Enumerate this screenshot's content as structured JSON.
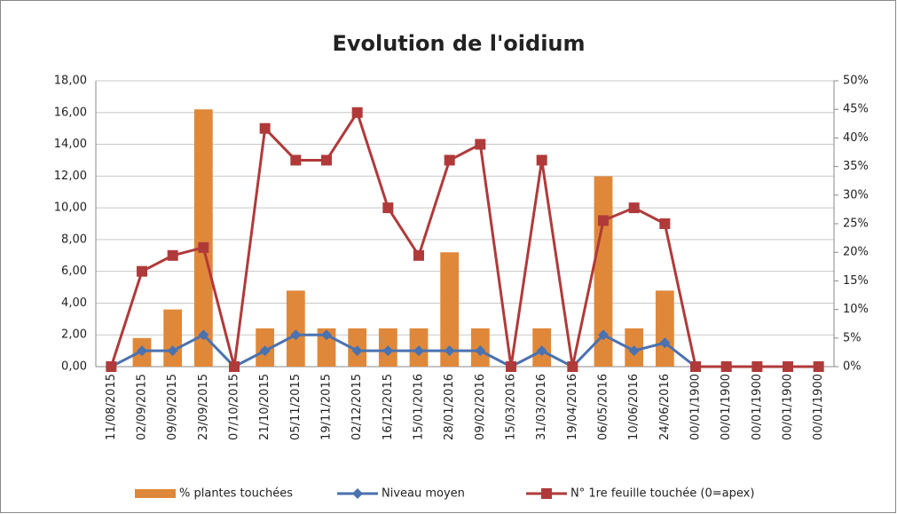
{
  "chart_data": {
    "type": "bar_line",
    "title": "Evolution de l'oidium",
    "categories": [
      "11/08/2015",
      "02/09/2015",
      "09/09/2015",
      "23/09/2015",
      "07/10/2015",
      "21/10/2015",
      "05/11/2015",
      "19/11/2015",
      "02/12/2015",
      "16/12/2015",
      "15/01/2016",
      "28/01/2016",
      "09/02/2016",
      "15/03/2016",
      "31/03/2016",
      "19/04/2016",
      "06/05/2016",
      "10/06/2016",
      "24/06/2016",
      "00/01/1900",
      "00/01/1900",
      "00/01/1900",
      "00/01/1900",
      "00/01/1900"
    ],
    "series": [
      {
        "name": "% plantes touchées",
        "type": "bar",
        "axis": "y2",
        "color": "#e0883a",
        "values": [
          0,
          5,
          10,
          45,
          0,
          6.7,
          13.3,
          6.7,
          6.7,
          6.7,
          6.7,
          20,
          6.7,
          0,
          6.7,
          0,
          33.3,
          6.7,
          13.3,
          0,
          0,
          0,
          0,
          0
        ]
      },
      {
        "name": "Niveau moyen",
        "type": "line",
        "marker": "diamond",
        "color": "#4a72b0",
        "values": [
          0,
          1,
          1,
          2,
          0,
          1,
          2,
          2,
          1,
          1,
          1,
          1,
          1,
          0,
          1,
          0,
          2,
          1,
          1.5,
          0,
          0,
          0,
          0,
          0
        ]
      },
      {
        "name": "N° 1re feuille touchée (0=apex)",
        "type": "line",
        "marker": "square",
        "color": "#b03a3a",
        "values": [
          0,
          6,
          7,
          7.5,
          0,
          15,
          13,
          13,
          16,
          10,
          7,
          13,
          14,
          0,
          13,
          0,
          9.2,
          10,
          9,
          0,
          0,
          0,
          0,
          0
        ]
      }
    ],
    "ylim": [
      0,
      18
    ],
    "yticks": [
      {
        "value": 0,
        "label": "0,00"
      },
      {
        "value": 2,
        "label": "2,00"
      },
      {
        "value": 4,
        "label": "4,00"
      },
      {
        "value": 6,
        "label": "6,00"
      },
      {
        "value": 8,
        "label": "8,00"
      },
      {
        "value": 10,
        "label": "10,00"
      },
      {
        "value": 12,
        "label": "12,00"
      },
      {
        "value": 14,
        "label": "14,00"
      },
      {
        "value": 16,
        "label": "16,00"
      },
      {
        "value": 18,
        "label": "18,00"
      }
    ],
    "y2lim": [
      0,
      50
    ],
    "y2ticks": [
      {
        "value": 0,
        "label": "0%"
      },
      {
        "value": 5,
        "label": "5%"
      },
      {
        "value": 10,
        "label": "10%"
      },
      {
        "value": 15,
        "label": "15%"
      },
      {
        "value": 20,
        "label": "20%"
      },
      {
        "value": 25,
        "label": "25%"
      },
      {
        "value": 30,
        "label": "30%"
      },
      {
        "value": 35,
        "label": "35%"
      },
      {
        "value": 40,
        "label": "40%"
      },
      {
        "value": 45,
        "label": "45%"
      },
      {
        "value": 50,
        "label": "50%"
      }
    ],
    "grid": true,
    "legend": "bottom"
  }
}
